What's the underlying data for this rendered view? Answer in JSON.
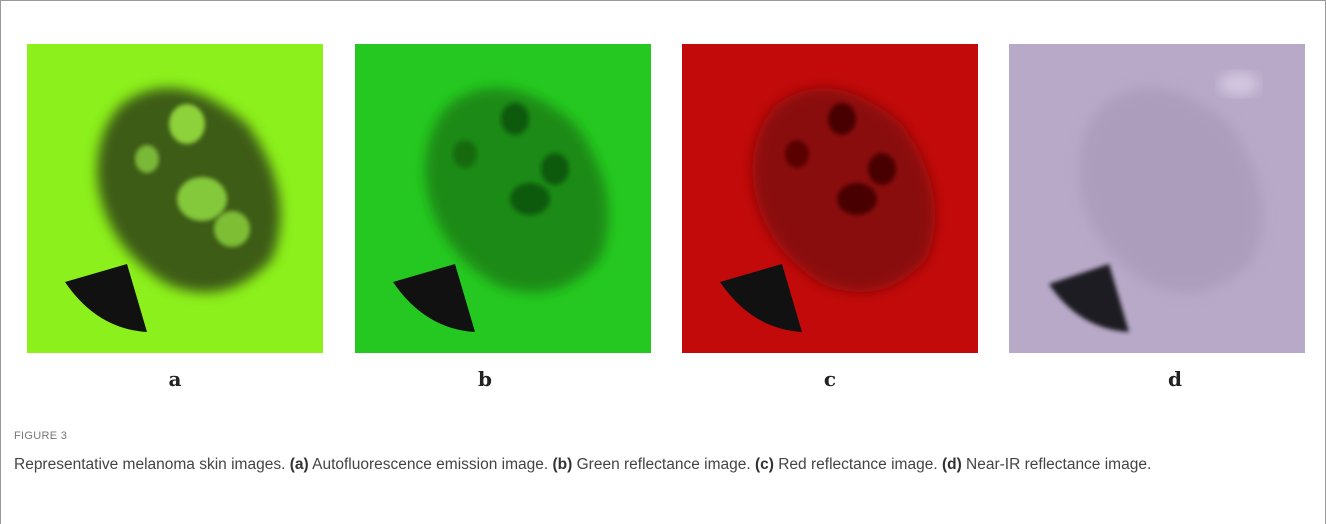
{
  "figure": {
    "panels": [
      {
        "label": "a"
      },
      {
        "label": "b"
      },
      {
        "label": "c"
      },
      {
        "label": "d"
      }
    ],
    "label": "FIGURE 3",
    "caption": {
      "intro": "Representative melanoma skin images.",
      "items": [
        {
          "tag": "(a)",
          "text": "Autofluorescence emission image."
        },
        {
          "tag": "(b)",
          "text": "Green reflectance image."
        },
        {
          "tag": "(c)",
          "text": "Red reflectance image."
        },
        {
          "tag": "(d)",
          "text": "Near-IR reflectance image."
        }
      ]
    }
  }
}
